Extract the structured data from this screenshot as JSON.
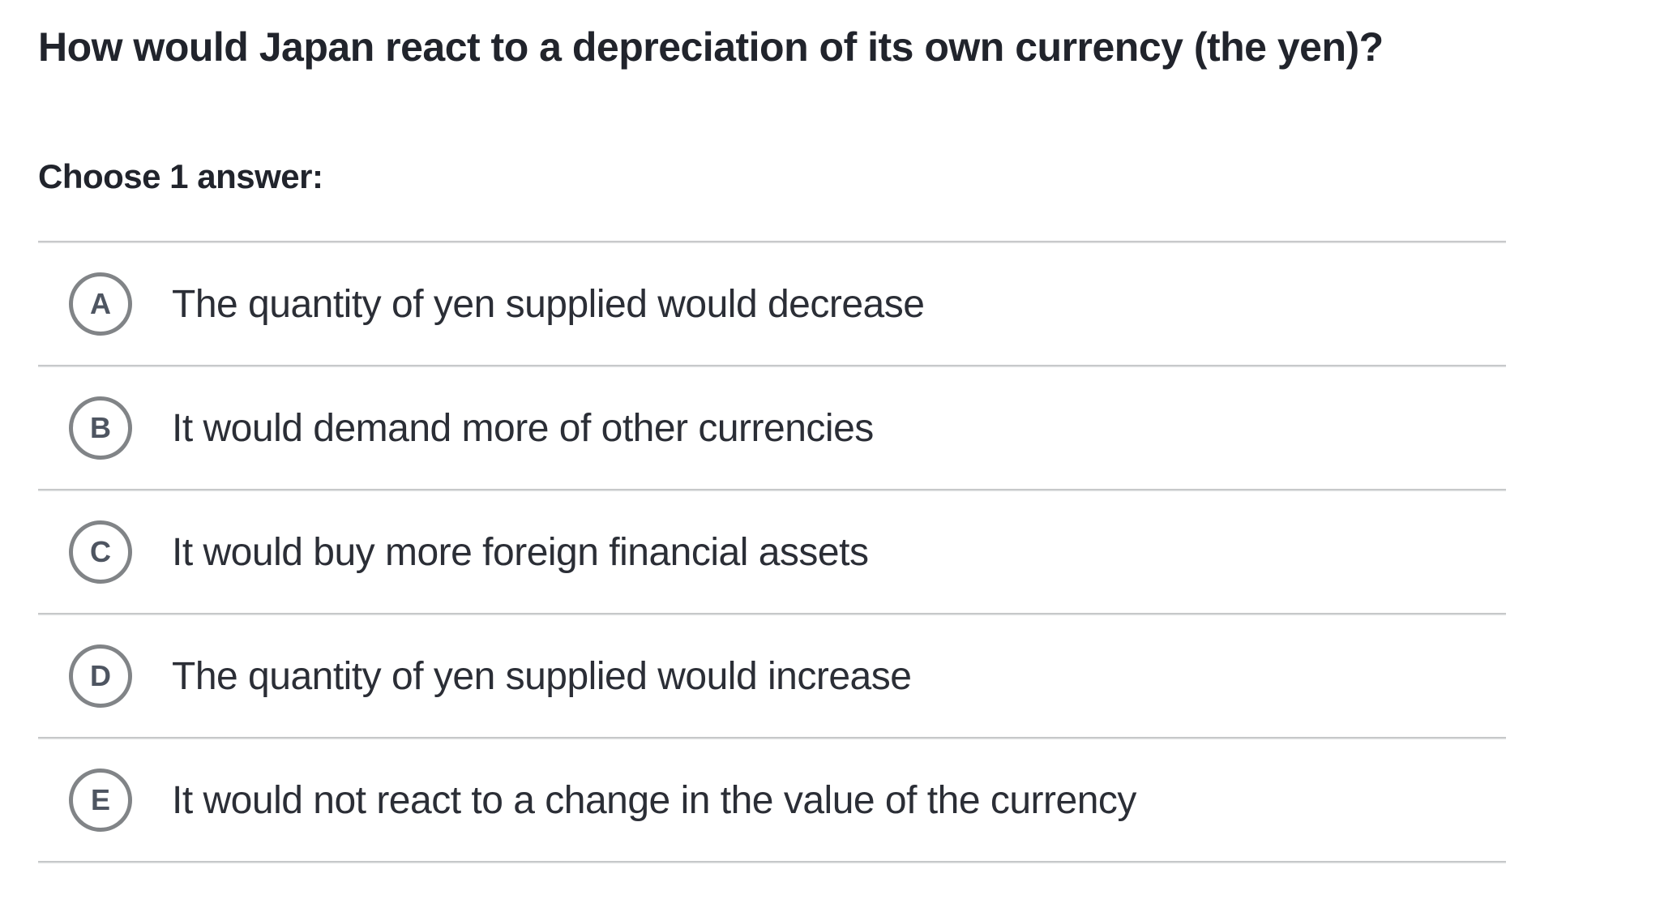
{
  "question": {
    "title": "How would Japan react to a depreciation of its own currency (the yen)?",
    "choose_label": "Choose 1 answer:"
  },
  "options": [
    {
      "letter": "A",
      "text": "The quantity of yen supplied would decrease",
      "selected": false
    },
    {
      "letter": "B",
      "text": "It would demand more of other currencies",
      "selected": false
    },
    {
      "letter": "C",
      "text": "It would buy more foreign financial assets",
      "selected": false
    },
    {
      "letter": "D",
      "text": "The quantity of yen supplied would increase",
      "selected": false
    },
    {
      "letter": "E",
      "text": "It would not react to a change in the value of the currency",
      "selected": false
    }
  ],
  "colors": {
    "background": "#ffffff",
    "title_text": "#21242c",
    "option_text": "#2b2e36",
    "radio_border": "#818487",
    "radio_letter": "#4e5561",
    "divider": "#c0c2c4"
  }
}
